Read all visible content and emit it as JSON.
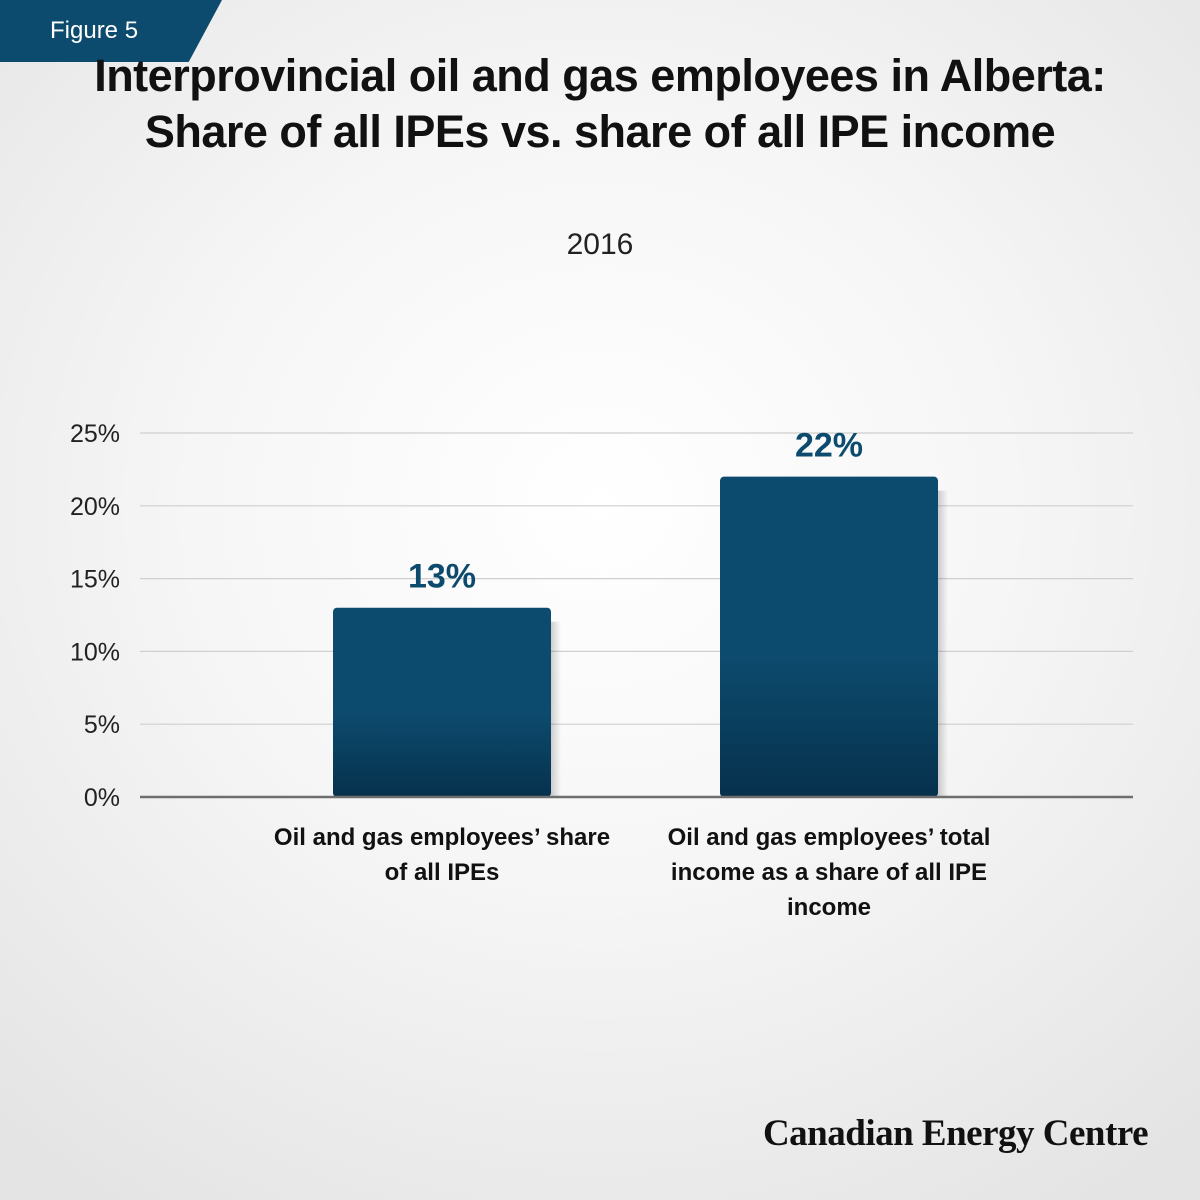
{
  "figure_tag": "Figure 5",
  "title": "Interprovincial oil and gas employees in Alberta: Share of all IPEs vs. share of all IPE income",
  "subtitle": "2016",
  "brand": "Canadian Energy Centre",
  "colors": {
    "bar": "#0d4b6e",
    "bar_dark": "#06314d",
    "value_label": "#0d4b6e",
    "tag": "#0d4b6e"
  },
  "chart_data": {
    "type": "bar",
    "categories": [
      "Oil and gas employees’ share of all IPEs",
      "Oil and gas employees’ total income as a share of all IPE income"
    ],
    "values": [
      13,
      22
    ],
    "value_labels": [
      "13%",
      "22%"
    ],
    "ylim": [
      0,
      25
    ],
    "yticks": [
      0,
      5,
      10,
      15,
      20,
      25
    ],
    "ytick_labels": [
      "0%",
      "5%",
      "10%",
      "15%",
      "20%",
      "25%"
    ],
    "xlabel": "",
    "ylabel": "",
    "grid": true,
    "legend": "none"
  }
}
